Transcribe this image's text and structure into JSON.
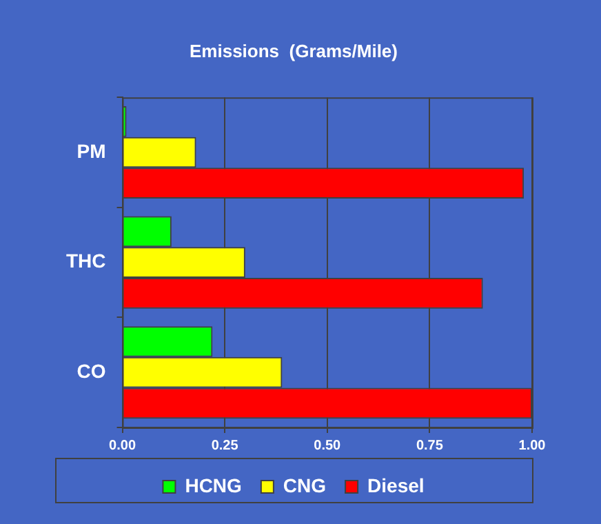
{
  "chart_data": {
    "type": "bar",
    "orientation": "horizontal",
    "title": "Emissions  (Grams/Mile)",
    "categories": [
      "PM",
      "THC",
      "CO"
    ],
    "series": [
      {
        "name": "HCNG",
        "color": "#00ff00",
        "values": [
          0.01,
          0.12,
          0.22
        ]
      },
      {
        "name": "CNG",
        "color": "#ffff00",
        "values": [
          0.18,
          0.3,
          0.39
        ]
      },
      {
        "name": "Diesel",
        "color": "#ff0000",
        "values": [
          0.98,
          0.88,
          1.0
        ]
      }
    ],
    "xlim": [
      0,
      1
    ],
    "xticks": [
      {
        "value": 0,
        "label": "0.00"
      },
      {
        "value": 0.25,
        "label": "0.25"
      },
      {
        "value": 0.5,
        "label": "0.50"
      },
      {
        "value": 0.75,
        "label": "0.75"
      },
      {
        "value": 1,
        "label": "1.00"
      }
    ],
    "grid": "x",
    "legend": "bottom"
  }
}
